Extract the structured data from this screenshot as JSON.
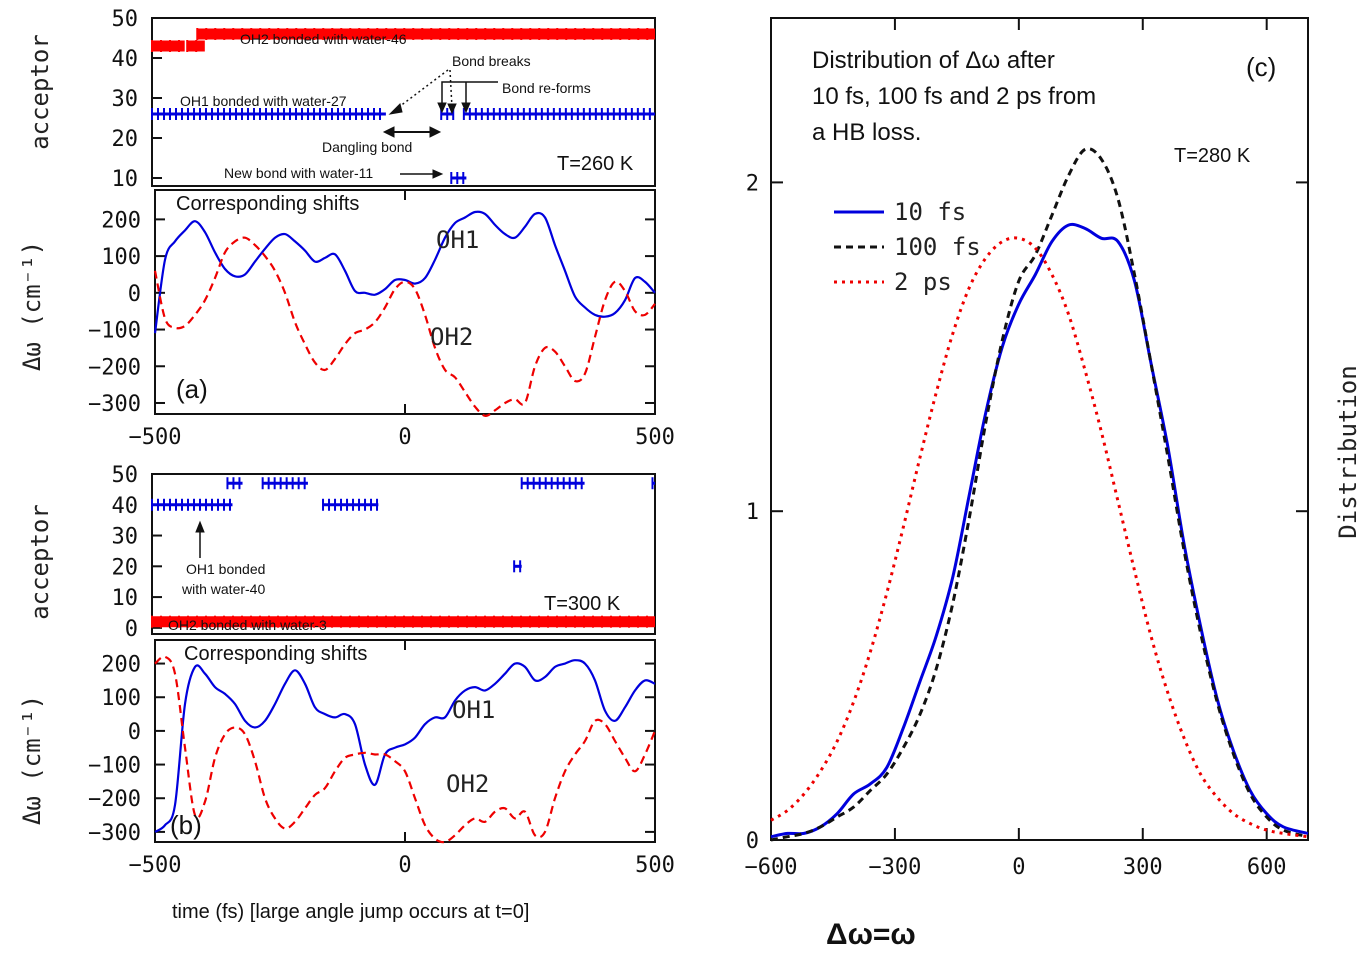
{
  "chart_data": [
    {
      "id": "a_top",
      "type": "scatter",
      "ylabel": "acceptor",
      "ylim": [
        8,
        50
      ],
      "xlim": [
        -500,
        500
      ],
      "yticks": [
        10,
        20,
        30,
        40,
        50
      ],
      "temperature": "T=260 K",
      "annotations": {
        "oh2": "OH2 bonded with water-46",
        "oh1": "OH1 bonded with water-27",
        "breaks": "Bond breaks",
        "reforms": "Bond re-forms",
        "dangling": "Dangling  bond",
        "newbond": "New bond with water-11"
      },
      "series": [
        {
          "color": "#ff0000",
          "segments": [
            [
              -500,
              -435,
              43
            ],
            [
              -430,
              -395,
              43
            ],
            [
              -410,
              500,
              46
            ]
          ]
        },
        {
          "color": "#0000dd",
          "segments": [
            [
              -500,
              -35,
              26
            ],
            [
              75,
              100,
              26
            ],
            [
              120,
              500,
              26
            ],
            [
              95,
              125,
              10
            ]
          ]
        }
      ]
    },
    {
      "id": "a_bottom",
      "type": "line",
      "ylabel": "Δω (cm⁻¹)",
      "ylim": [
        -330,
        280
      ],
      "xlim": [
        -500,
        500
      ],
      "yticks": [
        200,
        100,
        0,
        -100,
        -200,
        -300
      ],
      "xticks": [
        -500,
        0,
        500
      ],
      "subtitle": "Corresponding shifts",
      "panel_label": "(a)",
      "series": [
        {
          "name": "OH1",
          "color": "#0000dd",
          "dash": "",
          "x": [
            -500,
            -480,
            -460,
            -440,
            -420,
            -400,
            -380,
            -360,
            -340,
            -320,
            -300,
            -280,
            -260,
            -240,
            -220,
            -200,
            -180,
            -160,
            -140,
            -120,
            -100,
            -80,
            -60,
            -40,
            -20,
            0,
            20,
            40,
            60,
            80,
            100,
            120,
            140,
            160,
            180,
            200,
            220,
            240,
            260,
            280,
            300,
            320,
            340,
            360,
            380,
            400,
            420,
            440,
            460,
            480,
            500
          ],
          "y": [
            -110,
            90,
            140,
            170,
            195,
            165,
            110,
            65,
            45,
            50,
            85,
            120,
            150,
            160,
            140,
            115,
            85,
            95,
            105,
            60,
            5,
            0,
            -5,
            10,
            35,
            35,
            25,
            40,
            90,
            150,
            190,
            205,
            220,
            215,
            185,
            160,
            150,
            180,
            215,
            205,
            130,
            60,
            -10,
            -40,
            -60,
            -65,
            -55,
            -20,
            40,
            30,
            0
          ]
        },
        {
          "name": "OH2",
          "color": "#ee0000",
          "dash": "8,5",
          "x": [
            -500,
            -480,
            -460,
            -440,
            -420,
            -400,
            -380,
            -360,
            -340,
            -320,
            -300,
            -280,
            -260,
            -240,
            -220,
            -200,
            -180,
            -160,
            -140,
            -120,
            -100,
            -80,
            -60,
            -40,
            -20,
            0,
            20,
            40,
            60,
            80,
            100,
            120,
            140,
            160,
            180,
            200,
            220,
            240,
            260,
            280,
            300,
            320,
            340,
            360,
            380,
            400,
            420,
            440,
            460,
            480,
            500
          ],
          "y": [
            60,
            -70,
            -95,
            -90,
            -60,
            -20,
            40,
            110,
            140,
            150,
            130,
            100,
            60,
            0,
            -80,
            -140,
            -190,
            -210,
            -180,
            -140,
            -110,
            -100,
            -80,
            -40,
            10,
            30,
            10,
            -60,
            -150,
            -210,
            -230,
            -270,
            -310,
            -335,
            -320,
            -300,
            -290,
            -300,
            -200,
            -150,
            -160,
            -200,
            -240,
            -220,
            -120,
            -20,
            30,
            5,
            -50,
            -60,
            -30
          ]
        }
      ]
    },
    {
      "id": "b_top",
      "type": "scatter",
      "ylabel": "acceptor",
      "ylim": [
        -2,
        50
      ],
      "xlim": [
        -500,
        500
      ],
      "yticks": [
        0,
        10,
        20,
        30,
        40,
        50
      ],
      "temperature": "T=300 K",
      "annotations": {
        "oh1": "OH1 bonded",
        "oh1b": "with water-40",
        "oh2": "OH2 bonded with water-3"
      },
      "series": [
        {
          "color": "#ff0000",
          "segments": [
            [
              -500,
              500,
              2
            ]
          ]
        },
        {
          "color": "#0000dd",
          "segments": [
            [
              -500,
              -340,
              40
            ],
            [
              -350,
              -320,
              47
            ],
            [
              -280,
              -190,
              47
            ],
            [
              -160,
              -50,
              40
            ],
            [
              220,
              235,
              20
            ],
            [
              235,
              360,
              47
            ],
            [
              495,
              505,
              47
            ]
          ]
        }
      ]
    },
    {
      "id": "b_bottom",
      "type": "line",
      "ylabel": "Δω (cm⁻¹)",
      "ylim": [
        -330,
        270
      ],
      "xlim": [
        -500,
        500
      ],
      "yticks": [
        200,
        100,
        0,
        -100,
        -200,
        -300
      ],
      "xticks": [
        -500,
        0,
        500
      ],
      "xlabel": "time (fs)  [large angle jump occurs at t=0]",
      "subtitle": "Corresponding shifts",
      "panel_label": "(b)",
      "series": [
        {
          "name": "OH1",
          "color": "#0000dd",
          "dash": "",
          "x": [
            -500,
            -480,
            -460,
            -440,
            -420,
            -400,
            -380,
            -360,
            -340,
            -320,
            -300,
            -280,
            -260,
            -240,
            -220,
            -200,
            -180,
            -160,
            -140,
            -120,
            -100,
            -80,
            -60,
            -40,
            -20,
            0,
            20,
            40,
            60,
            80,
            100,
            120,
            140,
            160,
            180,
            200,
            220,
            240,
            260,
            280,
            300,
            320,
            340,
            360,
            380,
            400,
            420,
            440,
            460,
            480,
            500
          ],
          "y": [
            -300,
            -280,
            -220,
            80,
            190,
            170,
            130,
            110,
            80,
            30,
            10,
            30,
            80,
            140,
            180,
            140,
            70,
            50,
            40,
            50,
            20,
            -100,
            -160,
            -70,
            -50,
            -40,
            -20,
            20,
            40,
            40,
            90,
            120,
            130,
            120,
            140,
            170,
            200,
            190,
            150,
            160,
            190,
            200,
            210,
            200,
            150,
            60,
            30,
            70,
            120,
            150,
            140
          ]
        },
        {
          "name": "OH2",
          "color": "#ee0000",
          "dash": "8,5",
          "x": [
            -500,
            -480,
            -460,
            -440,
            -420,
            -400,
            -380,
            -360,
            -340,
            -320,
            -300,
            -280,
            -260,
            -240,
            -220,
            -200,
            -180,
            -160,
            -140,
            -120,
            -100,
            -80,
            -60,
            -40,
            -20,
            0,
            20,
            40,
            60,
            80,
            100,
            120,
            140,
            160,
            180,
            200,
            220,
            240,
            260,
            280,
            300,
            320,
            340,
            360,
            380,
            400,
            420,
            440,
            460,
            480,
            500
          ],
          "y": [
            200,
            220,
            170,
            -50,
            -250,
            -210,
            -80,
            -10,
            10,
            -10,
            -90,
            -200,
            -260,
            -290,
            -270,
            -230,
            -190,
            -170,
            -120,
            -80,
            -70,
            -65,
            -70,
            -70,
            -90,
            -120,
            -200,
            -280,
            -320,
            -330,
            -310,
            -280,
            -260,
            -270,
            -240,
            -230,
            -260,
            -240,
            -310,
            -300,
            -200,
            -120,
            -70,
            -30,
            30,
            20,
            -30,
            -80,
            -120,
            -70,
            0
          ]
        }
      ]
    },
    {
      "id": "c",
      "type": "line",
      "ylabel": "Distribution",
      "xlabel": "Δω=ω",
      "xlim": [
        -600,
        700
      ],
      "ylim": [
        0,
        2.5
      ],
      "xticks": [
        -600,
        -300,
        0,
        300,
        600
      ],
      "yticks": [
        0,
        1,
        2
      ],
      "title_lines": [
        "Distribution of Δω after",
        "10 fs, 100 fs and 2 ps from",
        "a HB loss."
      ],
      "temperature": "T=280 K",
      "panel_label": "(c)",
      "series": [
        {
          "name": "10 fs",
          "color": "#0000dd",
          "dash": "",
          "width": 3,
          "x": [
            -600,
            -560,
            -520,
            -480,
            -440,
            -400,
            -360,
            -320,
            -280,
            -240,
            -200,
            -160,
            -120,
            -80,
            -40,
            0,
            40,
            80,
            120,
            160,
            200,
            240,
            280,
            320,
            360,
            400,
            440,
            480,
            520,
            560,
            600,
            640,
            700
          ],
          "y": [
            0.01,
            0.02,
            0.02,
            0.04,
            0.08,
            0.14,
            0.17,
            0.22,
            0.34,
            0.48,
            0.62,
            0.8,
            1.05,
            1.3,
            1.5,
            1.63,
            1.72,
            1.82,
            1.87,
            1.86,
            1.83,
            1.82,
            1.7,
            1.45,
            1.2,
            0.9,
            0.65,
            0.43,
            0.27,
            0.15,
            0.08,
            0.04,
            0.02
          ]
        },
        {
          "name": "100 fs",
          "color": "#111111",
          "dash": "7,5",
          "width": 3,
          "x": [
            -600,
            -560,
            -520,
            -480,
            -440,
            -400,
            -360,
            -320,
            -280,
            -240,
            -200,
            -160,
            -120,
            -80,
            -40,
            0,
            40,
            80,
            120,
            160,
            200,
            240,
            280,
            320,
            360,
            400,
            440,
            480,
            520,
            560,
            600,
            640,
            700
          ],
          "y": [
            0.0,
            0.01,
            0.02,
            0.04,
            0.07,
            0.1,
            0.15,
            0.2,
            0.28,
            0.38,
            0.52,
            0.72,
            0.98,
            1.27,
            1.52,
            1.7,
            1.78,
            1.9,
            2.02,
            2.1,
            2.07,
            1.95,
            1.72,
            1.45,
            1.17,
            0.88,
            0.63,
            0.42,
            0.26,
            0.14,
            0.07,
            0.03,
            0.01
          ]
        },
        {
          "name": "2 ps",
          "color": "#ee0000",
          "dash": "3,5",
          "width": 3,
          "x": [
            -600,
            -560,
            -520,
            -480,
            -440,
            -400,
            -360,
            -320,
            -280,
            -240,
            -200,
            -160,
            -120,
            -80,
            -40,
            0,
            40,
            80,
            120,
            160,
            200,
            240,
            280,
            320,
            360,
            400,
            440,
            480,
            520,
            560,
            600,
            640,
            700
          ],
          "y": [
            0.06,
            0.09,
            0.14,
            0.21,
            0.3,
            0.42,
            0.57,
            0.75,
            0.95,
            1.16,
            1.36,
            1.54,
            1.68,
            1.77,
            1.82,
            1.83,
            1.8,
            1.72,
            1.6,
            1.43,
            1.24,
            1.03,
            0.82,
            0.62,
            0.45,
            0.31,
            0.2,
            0.13,
            0.08,
            0.05,
            0.03,
            0.02,
            0.01
          ]
        }
      ]
    }
  ]
}
